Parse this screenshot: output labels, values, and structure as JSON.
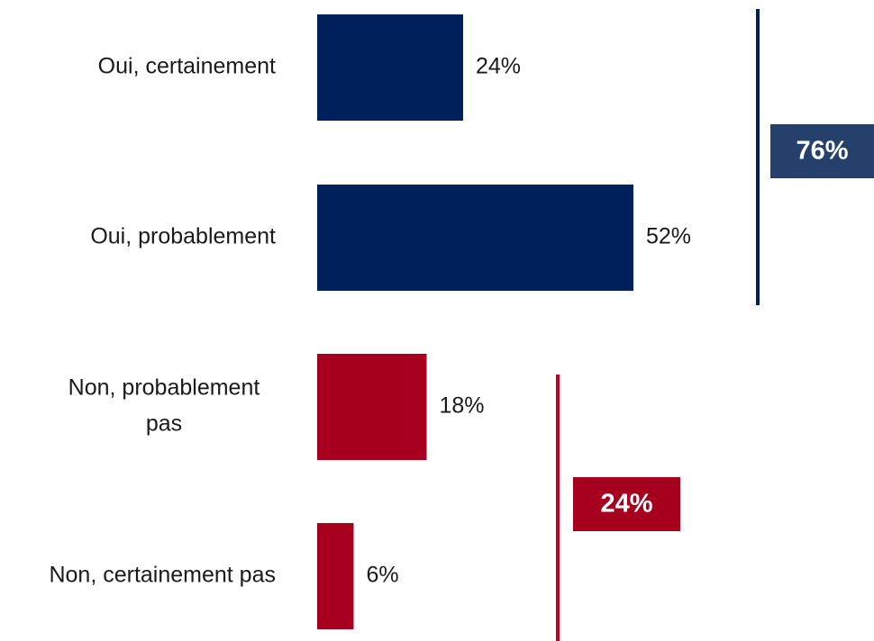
{
  "chart_data": {
    "type": "bar",
    "orientation": "horizontal",
    "categories": [
      [
        "Oui, certainement"
      ],
      [
        "Oui, probablement"
      ],
      [
        "Non, probablement",
        "pas"
      ],
      [
        "Non, certainement pas"
      ]
    ],
    "values": [
      24,
      52,
      18,
      6
    ],
    "value_labels": [
      "24%",
      "52%",
      "18%",
      "6%"
    ],
    "bar_colors": [
      "#00205B",
      "#00205B",
      "#A6001E",
      "#A6001E"
    ],
    "groups": [
      {
        "label": "76%",
        "members": [
          0,
          1
        ],
        "line_color": "#00205B",
        "box_color": "#25416B"
      },
      {
        "label": "24%",
        "members": [
          2,
          3
        ],
        "line_color": "#C0001F",
        "box_color": "#A6001E"
      }
    ],
    "xlim": [
      0,
      100
    ],
    "grid": false,
    "legend": "none"
  }
}
